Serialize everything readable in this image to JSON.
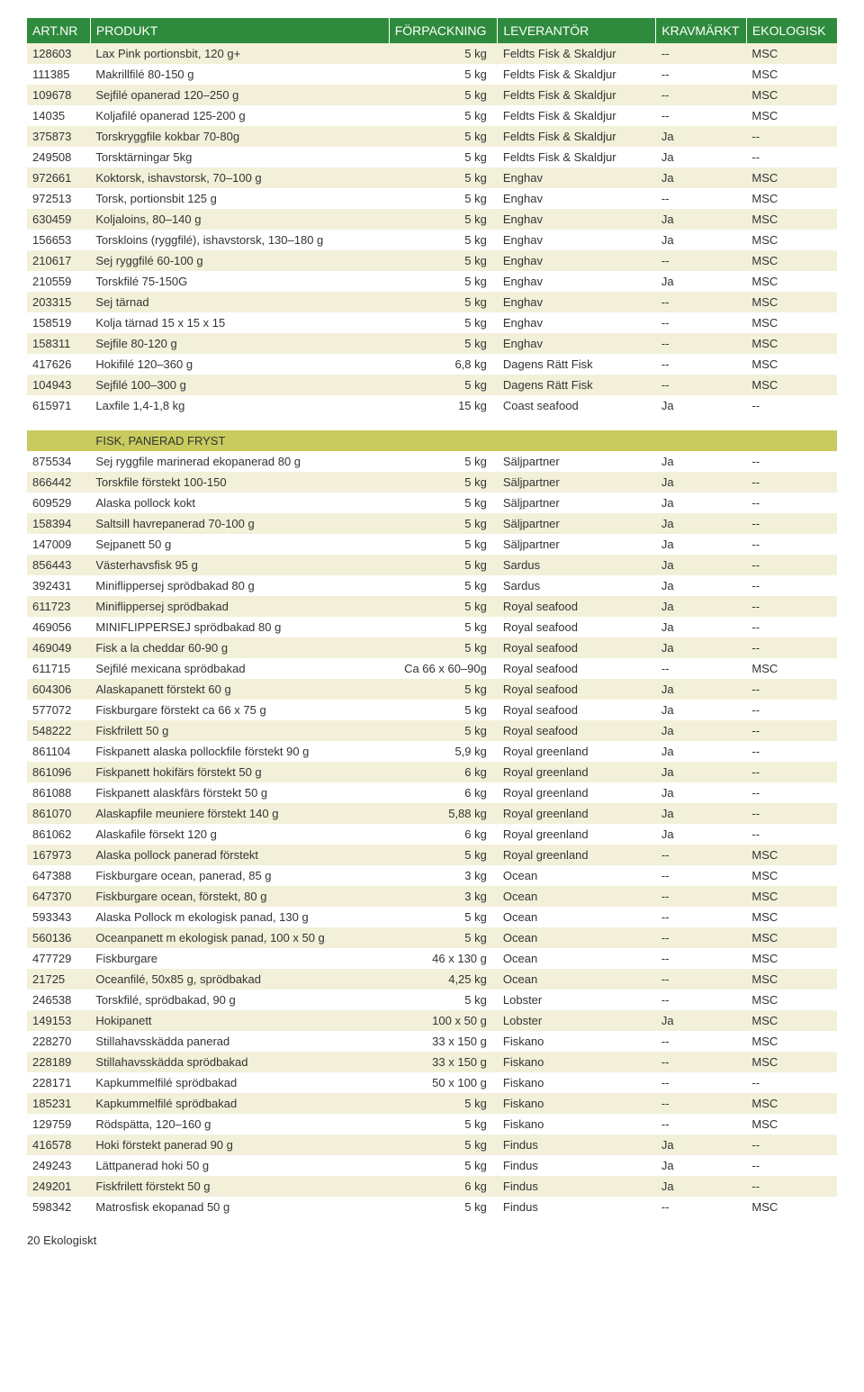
{
  "headers": {
    "art": "ART.NR",
    "prod": "PRODUKT",
    "pack": "FÖRPACKNING",
    "lev": "LEVERANTÖR",
    "krav": "KRAVMÄRKT",
    "eko": "EKOLOGISK"
  },
  "section2_title": "FISK, PANERAD FRYST",
  "footer": "20  Ekologiskt",
  "rows1": [
    {
      "art": "128603",
      "prod": "Lax Pink portionsbit, 120 g+",
      "pack": "5 kg",
      "lev": "Feldts Fisk & Skaldjur",
      "krav": "--",
      "eko": "MSC"
    },
    {
      "art": "111385",
      "prod": "Makrillfilé 80-150 g",
      "pack": "5 kg",
      "lev": "Feldts Fisk & Skaldjur",
      "krav": "--",
      "eko": "MSC"
    },
    {
      "art": "109678",
      "prod": "Sejfilé opanerad 120–250 g",
      "pack": "5 kg",
      "lev": "Feldts Fisk & Skaldjur",
      "krav": "--",
      "eko": "MSC"
    },
    {
      "art": "14035",
      "prod": "Koljafilé opanerad 125-200 g",
      "pack": "5 kg",
      "lev": "Feldts Fisk & Skaldjur",
      "krav": "--",
      "eko": "MSC"
    },
    {
      "art": "375873",
      "prod": "Torskryggfile kokbar 70-80g",
      "pack": "5 kg",
      "lev": "Feldts Fisk & Skaldjur",
      "krav": "Ja",
      "eko": "--"
    },
    {
      "art": "249508",
      "prod": "Torsktärningar 5kg",
      "pack": "5 kg",
      "lev": "Feldts Fisk & Skaldjur",
      "krav": "Ja",
      "eko": "--"
    },
    {
      "art": "972661",
      "prod": "Koktorsk, ishavstorsk, 70–100 g",
      "pack": "5 kg",
      "lev": "Enghav",
      "krav": "Ja",
      "eko": "MSC"
    },
    {
      "art": "972513",
      "prod": "Torsk, portionsbit 125 g",
      "pack": "5 kg",
      "lev": "Enghav",
      "krav": "--",
      "eko": "MSC"
    },
    {
      "art": "630459",
      "prod": "Koljaloins, 80–140 g",
      "pack": "5 kg",
      "lev": "Enghav",
      "krav": "Ja",
      "eko": "MSC"
    },
    {
      "art": "156653",
      "prod": "Torskloins (ryggfilé), ishavstorsk, 130–180 g",
      "pack": "5 kg",
      "lev": "Enghav",
      "krav": "Ja",
      "eko": "MSC"
    },
    {
      "art": "210617",
      "prod": "Sej ryggfilé 60-100 g",
      "pack": "5 kg",
      "lev": "Enghav",
      "krav": "--",
      "eko": "MSC"
    },
    {
      "art": "210559",
      "prod": "Torskfilé 75-150G",
      "pack": "5 kg",
      "lev": "Enghav",
      "krav": "Ja",
      "eko": "MSC"
    },
    {
      "art": "203315",
      "prod": "Sej tärnad",
      "pack": "5 kg",
      "lev": "Enghav",
      "krav": "--",
      "eko": "MSC"
    },
    {
      "art": "158519",
      "prod": "Kolja tärnad 15 x 15 x 15",
      "pack": "5 kg",
      "lev": "Enghav",
      "krav": "--",
      "eko": "MSC"
    },
    {
      "art": "158311",
      "prod": "Sejfile 80-120 g",
      "pack": "5 kg",
      "lev": "Enghav",
      "krav": "--",
      "eko": "MSC"
    },
    {
      "art": "417626",
      "prod": "Hokifilé 120–360 g",
      "pack": "6,8 kg",
      "lev": "Dagens Rätt Fisk",
      "krav": "--",
      "eko": "MSC"
    },
    {
      "art": "104943",
      "prod": "Sejfilé 100–300 g",
      "pack": "5 kg",
      "lev": "Dagens Rätt Fisk",
      "krav": "--",
      "eko": "MSC"
    },
    {
      "art": "615971",
      "prod": "Laxfile 1,4-1,8 kg",
      "pack": "15 kg",
      "lev": "Coast seafood",
      "krav": "Ja",
      "eko": "--"
    }
  ],
  "rows2": [
    {
      "art": "875534",
      "prod": "Sej ryggfile marinerad ekopanerad 80 g",
      "pack": "5 kg",
      "lev": "Säljpartner",
      "krav": "Ja",
      "eko": "--"
    },
    {
      "art": "866442",
      "prod": "Torskfile förstekt 100-150",
      "pack": "5 kg",
      "lev": "Säljpartner",
      "krav": "Ja",
      "eko": "--"
    },
    {
      "art": "609529",
      "prod": "Alaska pollock kokt",
      "pack": "5 kg",
      "lev": "Säljpartner",
      "krav": "Ja",
      "eko": "--"
    },
    {
      "art": "158394",
      "prod": "Saltsill havrepanerad 70-100 g",
      "pack": "5 kg",
      "lev": "Säljpartner",
      "krav": "Ja",
      "eko": "--"
    },
    {
      "art": "147009",
      "prod": "Sejpanett 50 g",
      "pack": "5 kg",
      "lev": "Säljpartner",
      "krav": "Ja",
      "eko": "--"
    },
    {
      "art": "856443",
      "prod": "Västerhavsfisk 95 g",
      "pack": "5 kg",
      "lev": "Sardus",
      "krav": "Ja",
      "eko": "--"
    },
    {
      "art": "392431",
      "prod": "Miniflippersej sprödbakad 80 g",
      "pack": "5 kg",
      "lev": "Sardus",
      "krav": "Ja",
      "eko": "--"
    },
    {
      "art": "611723",
      "prod": "Miniflippersej sprödbakad",
      "pack": "5 kg",
      "lev": "Royal seafood",
      "krav": "Ja",
      "eko": "--"
    },
    {
      "art": "469056",
      "prod": "MINIFLIPPERSEJ sprödbakad 80 g",
      "pack": "5 kg",
      "lev": "Royal seafood",
      "krav": "Ja",
      "eko": "--"
    },
    {
      "art": "469049",
      "prod": "Fisk a la cheddar 60-90 g",
      "pack": "5 kg",
      "lev": "Royal seafood",
      "krav": "Ja",
      "eko": "--"
    },
    {
      "art": "611715",
      "prod": "Sejfilé mexicana sprödbakad",
      "pack": "Ca 66  x  60–90g",
      "lev": "Royal seafood",
      "krav": "--",
      "eko": "MSC"
    },
    {
      "art": "604306",
      "prod": "Alaskapanett förstekt 60 g",
      "pack": "5 kg",
      "lev": "Royal seafood",
      "krav": "Ja",
      "eko": "--"
    },
    {
      "art": "577072",
      "prod": "Fiskburgare förstekt ca 66 x 75 g",
      "pack": "5 kg",
      "lev": "Royal seafood",
      "krav": "Ja",
      "eko": "--"
    },
    {
      "art": "548222",
      "prod": "Fiskfrilett 50 g",
      "pack": "5 kg",
      "lev": "Royal seafood",
      "krav": "Ja",
      "eko": "--"
    },
    {
      "art": "861104",
      "prod": "Fiskpanett alaska pollockfile förstekt 90 g",
      "pack": "5,9 kg",
      "lev": "Royal greenland",
      "krav": "Ja",
      "eko": "--"
    },
    {
      "art": "861096",
      "prod": "Fiskpanett hokifärs förstekt 50 g",
      "pack": "6 kg",
      "lev": "Royal greenland",
      "krav": "Ja",
      "eko": "--"
    },
    {
      "art": "861088",
      "prod": "Fiskpanett alaskfärs förstekt 50 g",
      "pack": "6 kg",
      "lev": "Royal greenland",
      "krav": "Ja",
      "eko": "--"
    },
    {
      "art": "861070",
      "prod": "Alaskapfile meuniere förstekt 140 g",
      "pack": "5,88 kg",
      "lev": "Royal greenland",
      "krav": "Ja",
      "eko": "--"
    },
    {
      "art": "861062",
      "prod": "Alaskafile försekt 120 g",
      "pack": "6 kg",
      "lev": "Royal greenland",
      "krav": "Ja",
      "eko": "--"
    },
    {
      "art": "167973",
      "prod": "Alaska pollock panerad förstekt",
      "pack": "5 kg",
      "lev": "Royal greenland",
      "krav": "--",
      "eko": "MSC"
    },
    {
      "art": "647388",
      "prod": "Fiskburgare ocean, panerad, 85 g",
      "pack": "3 kg",
      "lev": "Ocean",
      "krav": "--",
      "eko": "MSC"
    },
    {
      "art": "647370",
      "prod": "Fiskburgare ocean, förstekt, 80 g",
      "pack": "3 kg",
      "lev": "Ocean",
      "krav": "--",
      "eko": "MSC"
    },
    {
      "art": "593343",
      "prod": "Alaska Pollock m ekologisk panad, 130 g",
      "pack": "5 kg",
      "lev": "Ocean",
      "krav": "--",
      "eko": "MSC"
    },
    {
      "art": "560136",
      "prod": "Oceanpanett m ekologisk panad, 100 x 50 g",
      "pack": "5 kg",
      "lev": "Ocean",
      "krav": "--",
      "eko": "MSC"
    },
    {
      "art": "477729",
      "prod": "Fiskburgare",
      "pack": "46  x  130 g",
      "lev": "Ocean",
      "krav": "--",
      "eko": "MSC"
    },
    {
      "art": "21725",
      "prod": "Oceanfilé, 50x85 g, sprödbakad",
      "pack": "4,25 kg",
      "lev": "Ocean",
      "krav": "--",
      "eko": "MSC"
    },
    {
      "art": "246538",
      "prod": "Torskfilé, sprödbakad, 90 g",
      "pack": "5 kg",
      "lev": "Lobster",
      "krav": "--",
      "eko": "MSC"
    },
    {
      "art": "149153",
      "prod": "Hokipanett",
      "pack": "100  x  50 g",
      "lev": "Lobster",
      "krav": "Ja",
      "eko": "MSC"
    },
    {
      "art": "228270",
      "prod": "Stillahavsskädda panerad",
      "pack": "33  x  150 g",
      "lev": "Fiskano",
      "krav": "--",
      "eko": "MSC"
    },
    {
      "art": "228189",
      "prod": "Stillahavsskädda sprödbakad",
      "pack": "33  x  150 g",
      "lev": "Fiskano",
      "krav": "--",
      "eko": "MSC"
    },
    {
      "art": "228171",
      "prod": "Kapkummelfilé sprödbakad",
      "pack": "50  x  100 g",
      "lev": "Fiskano",
      "krav": "--",
      "eko": "--"
    },
    {
      "art": "185231",
      "prod": "Kapkummelfilé sprödbakad",
      "pack": "5 kg",
      "lev": "Fiskano",
      "krav": "--",
      "eko": "MSC"
    },
    {
      "art": "129759",
      "prod": "Rödspätta, 120–160 g",
      "pack": "5 kg",
      "lev": "Fiskano",
      "krav": "--",
      "eko": "MSC"
    },
    {
      "art": "416578",
      "prod": "Hoki förstekt panerad 90 g",
      "pack": "5 kg",
      "lev": "Findus",
      "krav": "Ja",
      "eko": "--"
    },
    {
      "art": "249243",
      "prod": "Lättpanerad hoki 50 g",
      "pack": "5 kg",
      "lev": "Findus",
      "krav": "Ja",
      "eko": "--"
    },
    {
      "art": "249201",
      "prod": "Fiskfrilett förstekt 50 g",
      "pack": "6 kg",
      "lev": "Findus",
      "krav": "Ja",
      "eko": "--"
    },
    {
      "art": "598342",
      "prod": "Matrosfisk ekopanad 50 g",
      "pack": "5 kg",
      "lev": "Findus",
      "krav": "--",
      "eko": "MSC"
    }
  ]
}
